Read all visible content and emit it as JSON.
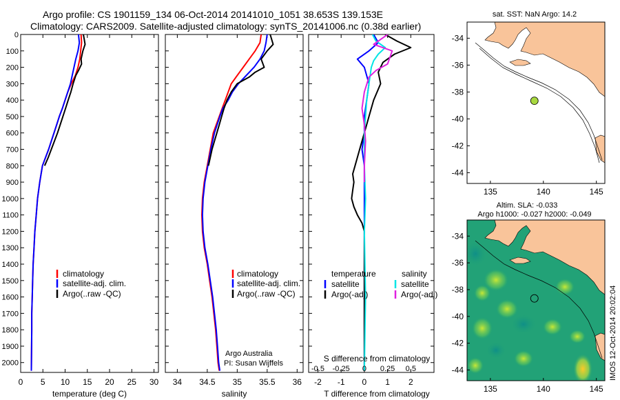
{
  "header": {
    "line1": "Argo profile: CS 1901159_134 06-Oct-2014 20141010_1051 38.653S 139.153E",
    "line2": "Climatology: CARS2009. Satellite-adjusted climatology: synTS_20141006.nc (0.38d earlier)"
  },
  "credit": {
    "line1": "Argo Australia",
    "line2": "PI: Susan Wijffels"
  },
  "stamp": "IMOS 12-Oct-2014 20:02:04",
  "colors": {
    "climatology": "#ff0000",
    "satellite": "#0000ff",
    "argo": "#000000",
    "s_satellite": "#00e5e5",
    "s_argo": "#e020e0",
    "land": "#f9c49a",
    "float_marker": "#a8d840"
  },
  "chart_data": [
    {
      "type": "line",
      "xlabel": "temperature (deg C)",
      "xlim": [
        0,
        31
      ],
      "xticks": [
        0,
        5,
        10,
        15,
        20,
        25,
        30
      ],
      "ylim": [
        0,
        2060
      ],
      "yticks": [
        0,
        100,
        200,
        300,
        400,
        500,
        600,
        700,
        800,
        900,
        1000,
        1100,
        1200,
        1300,
        1400,
        1500,
        1600,
        1700,
        1800,
        1900,
        2000
      ],
      "legend": [
        "climatology",
        "satellite-adj. clim.",
        "Argo(..raw -QC)"
      ],
      "legend_position": "lower-right",
      "series": [
        {
          "name": "climatology",
          "color": "#ff0000",
          "x": [
            13.6,
            13.7,
            13.5,
            13.3,
            12.9,
            12.3,
            11.4,
            10.6,
            10.0,
            9.4,
            8.7,
            8.1,
            7.5,
            6.9,
            6.3,
            5.6,
            4.9,
            4.3,
            3.8,
            3.5,
            3.2,
            3.0,
            2.8,
            2.7,
            2.6,
            2.5,
            2.5,
            2.4
          ],
          "y": [
            0,
            50,
            100,
            150,
            200,
            250,
            300,
            350,
            400,
            450,
            500,
            550,
            600,
            650,
            700,
            750,
            800,
            900,
            1000,
            1100,
            1200,
            1300,
            1400,
            1500,
            1600,
            1700,
            1800,
            2050
          ]
        },
        {
          "name": "satellite-adj. clim.",
          "color": "#0000ff",
          "x": [
            13.0,
            13.2,
            12.9,
            12.4,
            12.0,
            11.6,
            11.2,
            10.6,
            10.0,
            9.4,
            8.7,
            8.1,
            7.5,
            6.9,
            6.3,
            5.6,
            4.9,
            4.3,
            3.8,
            3.5,
            3.2,
            3.0,
            2.8,
            2.7,
            2.6,
            2.5,
            2.5,
            2.4
          ],
          "y": [
            0,
            50,
            100,
            150,
            200,
            250,
            300,
            350,
            400,
            450,
            500,
            550,
            600,
            650,
            700,
            750,
            800,
            900,
            1000,
            1100,
            1200,
            1300,
            1400,
            1500,
            1600,
            1700,
            1800,
            2050
          ]
        },
        {
          "name": "Argo(..raw -QC)",
          "color": "#000000",
          "x": [
            14.1,
            14.3,
            14.5,
            14.0,
            13.6,
            13.7,
            13.0,
            12.4,
            11.8,
            11.3,
            10.7,
            10.1,
            9.5,
            8.9,
            8.3,
            7.6,
            6.9,
            6.2,
            5.4
          ],
          "y": [
            0,
            30,
            60,
            100,
            150,
            180,
            220,
            250,
            300,
            350,
            400,
            450,
            500,
            550,
            600,
            650,
            700,
            750,
            800
          ]
        }
      ]
    },
    {
      "type": "line",
      "xlabel": "salinity",
      "xlim": [
        33.8,
        36.1
      ],
      "xticks": [
        34,
        34.5,
        35,
        35.5,
        36
      ],
      "ylim": [
        0,
        2060
      ],
      "legend": [
        "climatology",
        "satellite-adj. clim.",
        "Argo(..raw -QC)"
      ],
      "legend_position": "lower-right",
      "series": [
        {
          "name": "climatology",
          "color": "#ff0000",
          "x": [
            35.4,
            35.38,
            35.3,
            35.2,
            35.1,
            35.0,
            34.9,
            34.85,
            34.8,
            34.75,
            34.7,
            34.6,
            34.55,
            34.5,
            34.45,
            34.42,
            34.41,
            34.42,
            34.45,
            34.5,
            34.54,
            34.58,
            34.61,
            34.64,
            34.66,
            34.68,
            34.7
          ],
          "y": [
            0,
            50,
            100,
            150,
            200,
            250,
            300,
            350,
            400,
            450,
            500,
            600,
            700,
            800,
            900,
            1000,
            1100,
            1200,
            1300,
            1400,
            1500,
            1600,
            1700,
            1800,
            1900,
            2000,
            2050
          ]
        },
        {
          "name": "satellite-adj. clim.",
          "color": "#0000ff",
          "x": [
            35.5,
            35.48,
            35.45,
            35.38,
            35.28,
            35.15,
            35.02,
            34.92,
            34.85,
            34.76,
            34.71,
            34.62,
            34.56,
            34.51,
            34.46,
            34.43,
            34.42,
            34.43,
            34.46,
            34.51,
            34.55,
            34.59,
            34.62,
            34.65,
            34.67,
            34.69,
            34.71
          ],
          "y": [
            0,
            50,
            100,
            150,
            200,
            250,
            300,
            350,
            400,
            450,
            500,
            600,
            700,
            800,
            900,
            1000,
            1100,
            1200,
            1300,
            1400,
            1500,
            1600,
            1700,
            1800,
            1900,
            2000,
            2050
          ]
        },
        {
          "name": "Argo(..raw -QC)",
          "color": "#000000",
          "x": [
            35.55,
            35.6,
            35.5,
            35.4,
            35.45,
            35.3,
            35.2,
            35.0,
            34.9,
            34.83,
            34.78,
            34.74,
            34.7,
            34.66,
            34.62,
            34.58,
            34.55,
            34.52
          ],
          "y": [
            0,
            60,
            100,
            150,
            200,
            230,
            260,
            300,
            350,
            400,
            450,
            500,
            550,
            600,
            650,
            700,
            750,
            800
          ]
        }
      ]
    },
    {
      "type": "line",
      "xlabel": "T difference from climatology",
      "xlabel_top": "S difference from climatology",
      "xlim": [
        -2.4,
        3.0
      ],
      "xticks": [
        -2,
        -1,
        0,
        1,
        2
      ],
      "xticks_top": [
        "-0.5",
        "-0.25",
        "0",
        "0.25",
        "0.5"
      ],
      "ylim": [
        0,
        2060
      ],
      "legend_titles": [
        "temperature",
        "salinity"
      ],
      "legend": [
        "satellite",
        "Argo(-adj)",
        "satellite",
        "Argo(-adj)"
      ],
      "legend_position": "lower-center",
      "series": [
        {
          "name": "temperature satellite",
          "color": "#0000ff",
          "x": [
            0.4,
            0.6,
            0.2,
            -0.3,
            0.0,
            0.2,
            0.1,
            0.0,
            0.0,
            -0.1,
            0.0,
            0.0,
            0.0,
            0.0,
            0.0
          ],
          "y": [
            0,
            50,
            100,
            150,
            200,
            300,
            400,
            500,
            600,
            700,
            800,
            1000,
            1200,
            1600,
            2050
          ]
        },
        {
          "name": "temperature Argo(-adj)",
          "color": "#000000",
          "x": [
            0.9,
            1.4,
            2.0,
            1.3,
            0.8,
            0.6,
            0.7,
            0.4,
            0.2,
            0.0,
            -0.2,
            -0.4,
            -0.5,
            -0.45,
            -0.5,
            -0.55,
            -0.45,
            -0.3,
            -0.1,
            0.0,
            0.0,
            0.0,
            0.0
          ],
          "y": [
            0,
            40,
            80,
            120,
            170,
            230,
            300,
            400,
            500,
            600,
            700,
            800,
            850,
            900,
            950,
            1000,
            1050,
            1100,
            1150,
            1200,
            1400,
            1600,
            2050
          ]
        },
        {
          "name": "salinity satellite",
          "color": "#00e5e5",
          "x": [
            0.35,
            0.5,
            0.9,
            0.6,
            0.4,
            0.3,
            0.2,
            0.1,
            0.05,
            0.0,
            0.0,
            0.05,
            0.0,
            0.05,
            0.0
          ],
          "y": [
            0,
            40,
            80,
            120,
            160,
            200,
            300,
            400,
            500,
            600,
            800,
            1000,
            1200,
            1600,
            2050
          ]
        },
        {
          "name": "salinity Argo(-adj)",
          "color": "#e020e0",
          "x": [
            1.0,
            0.4,
            1.2,
            1.0,
            0.5,
            0.2,
            0.0,
            -0.1,
            0.0,
            0.05,
            0.0,
            0.0
          ],
          "y": [
            0,
            60,
            100,
            180,
            220,
            260,
            350,
            450,
            550,
            650,
            800,
            900
          ]
        }
      ]
    },
    {
      "type": "map",
      "title": "sat. SST: NaN Argo: 14.2",
      "xlim": [
        132.8,
        145.8
      ],
      "xticks": [
        135,
        140,
        145
      ],
      "ylim": [
        -44.8,
        -32.8
      ],
      "yticks": [
        -44,
        -42,
        -40,
        -38,
        -36,
        -34
      ],
      "marker": {
        "lon": 139.153,
        "lat": -38.653
      }
    },
    {
      "type": "heatmap",
      "title_line1": "Altim. SLA: -0.033",
      "title_line2": "Argo h1000: -0.027 h2000: -0.049",
      "xlim": [
        132.8,
        145.8
      ],
      "xticks": [
        135,
        140,
        145
      ],
      "ylim": [
        -44.8,
        -32.8
      ],
      "yticks": [
        -44,
        -42,
        -40,
        -38,
        -36,
        -34
      ],
      "marker": {
        "lon": 139.153,
        "lat": -38.653
      },
      "colormap": "parula"
    }
  ]
}
